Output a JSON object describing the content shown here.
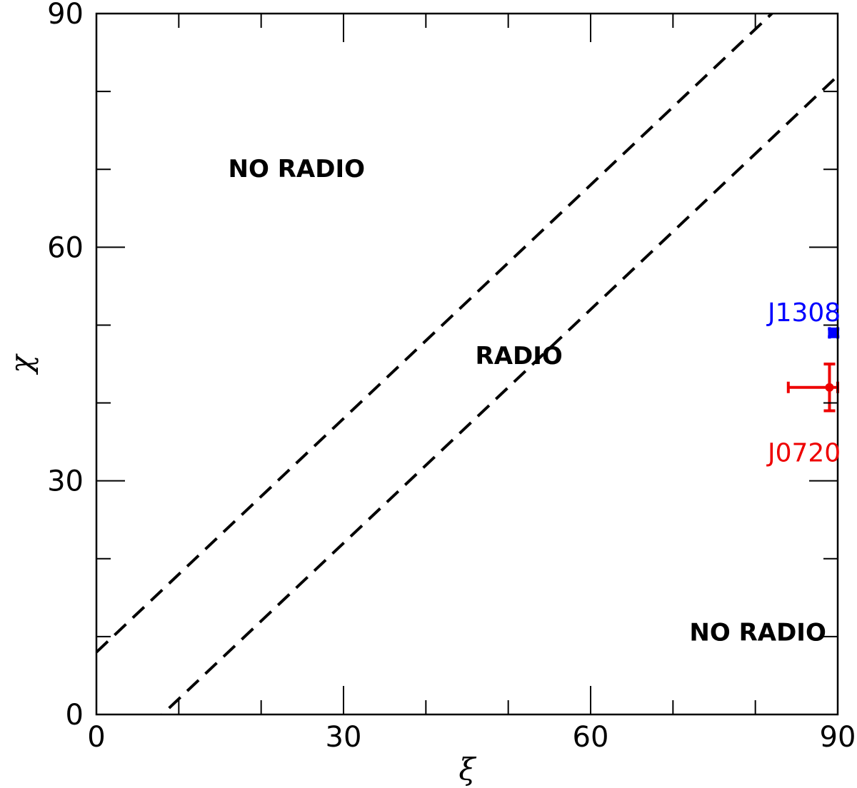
{
  "chart_data": {
    "type": "scatter",
    "xlabel": "ξ",
    "ylabel": "χ",
    "xlim": [
      0,
      90
    ],
    "ylim": [
      0,
      90
    ],
    "xticks": [
      0,
      30,
      60,
      90
    ],
    "yticks": [
      0,
      30,
      60,
      90
    ],
    "x_minor_ticks": [
      10,
      20,
      40,
      50,
      70,
      80
    ],
    "y_minor_ticks": [
      10,
      20,
      40,
      50,
      70,
      80
    ],
    "tick_labels": {
      "x": [
        "0",
        "30",
        "60",
        "90"
      ],
      "y": [
        "0",
        "30",
        "60",
        "90"
      ]
    },
    "lines": [
      {
        "style": "dashed",
        "color": "#000000",
        "x": [
          0,
          90
        ],
        "y": [
          8,
          98
        ]
      },
      {
        "style": "dashed",
        "color": "#000000",
        "x": [
          0,
          90
        ],
        "y": [
          -8,
          82
        ]
      }
    ],
    "points": [
      {
        "name": "J1308",
        "color": "#0000ff",
        "x": 89.5,
        "y": 49,
        "xerr": [
          0.5,
          0.5
        ],
        "yerr": [
          0.5,
          0.5
        ]
      },
      {
        "name": "J0720",
        "color": "#ee0000",
        "x": 89,
        "y": 42,
        "xerr": [
          5,
          1
        ],
        "yerr": [
          3,
          3
        ]
      }
    ],
    "annotations": [
      {
        "text": "NO RADIO",
        "x": 16,
        "y": 69
      },
      {
        "text": "RADIO",
        "x": 46,
        "y": 45
      },
      {
        "text": "NO RADIO",
        "x": 72,
        "y": 9.5
      }
    ],
    "source_labels": [
      {
        "text": "J1308",
        "color": "#0000ff",
        "x": 81.5,
        "y": 50.5
      },
      {
        "text": "J0720",
        "color": "#ee0000",
        "x": 81.5,
        "y": 32.5
      }
    ]
  }
}
